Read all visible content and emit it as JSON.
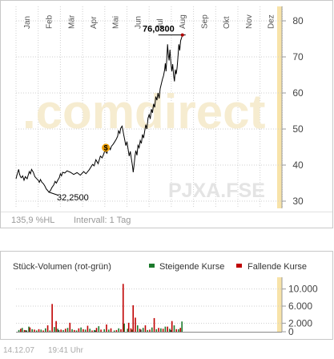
{
  "chart_data": [
    {
      "type": "line",
      "months": [
        "Jan",
        "Feb",
        "Mär",
        "Apr",
        "Mai",
        "Jun",
        "Jul",
        "Aug",
        "Sep",
        "Okt",
        "Nov",
        "Dez"
      ],
      "yticks": [
        30,
        40,
        50,
        60,
        70,
        80
      ],
      "ylim": [
        28,
        84
      ],
      "grid": true,
      "price_path": [
        [
          0,
          36.2
        ],
        [
          0.04,
          37.2
        ],
        [
          0.08,
          38.0
        ],
        [
          0.12,
          38.8
        ],
        [
          0.16,
          37.5
        ],
        [
          0.2,
          36.8
        ],
        [
          0.24,
          36.5
        ],
        [
          0.3,
          37.0
        ],
        [
          0.36,
          35.8
        ],
        [
          0.42,
          36.8
        ],
        [
          0.5,
          36.2
        ],
        [
          0.55,
          37.2
        ],
        [
          0.6,
          38.2
        ],
        [
          0.65,
          37.6
        ],
        [
          0.7,
          38.8
        ],
        [
          0.78,
          38.0
        ],
        [
          0.85,
          36.8
        ],
        [
          0.92,
          36.3
        ],
        [
          1.0,
          35.8
        ],
        [
          1.05,
          35.2
        ],
        [
          1.1,
          36.0
        ],
        [
          1.16,
          35.3
        ],
        [
          1.24,
          34.8
        ],
        [
          1.3,
          34.2
        ],
        [
          1.36,
          33.4
        ],
        [
          1.42,
          33.0
        ],
        [
          1.48,
          32.5
        ],
        [
          1.55,
          32.9
        ],
        [
          1.62,
          33.8
        ],
        [
          1.7,
          34.5
        ],
        [
          1.76,
          35.5
        ],
        [
          1.82,
          35.0
        ],
        [
          1.88,
          35.8
        ],
        [
          1.95,
          36.5
        ],
        [
          2.0,
          37.6
        ],
        [
          2.05,
          37.0
        ],
        [
          2.1,
          38.0
        ],
        [
          2.2,
          37.8
        ],
        [
          2.3,
          38.4
        ],
        [
          2.45,
          38.0
        ],
        [
          2.6,
          37.4
        ],
        [
          2.75,
          37.9
        ],
        [
          2.9,
          37.2
        ],
        [
          3.05,
          38.2
        ],
        [
          3.15,
          37.6
        ],
        [
          3.3,
          38.7
        ],
        [
          3.45,
          40.2
        ],
        [
          3.52,
          39.8
        ],
        [
          3.6,
          41.5
        ],
        [
          3.7,
          40.4
        ],
        [
          3.8,
          42.5
        ],
        [
          3.88,
          42.0
        ],
        [
          3.95,
          43.0
        ],
        [
          4.0,
          44.0
        ],
        [
          4.1,
          43.3
        ],
        [
          4.15,
          45.5
        ],
        [
          4.2,
          45.0
        ],
        [
          4.25,
          44.3
        ],
        [
          4.3,
          45.2
        ],
        [
          4.38,
          45.8
        ],
        [
          4.45,
          46.5
        ],
        [
          4.52,
          47.2
        ],
        [
          4.58,
          48.0
        ],
        [
          4.62,
          49.5
        ],
        [
          4.68,
          48.8
        ],
        [
          4.72,
          50.2
        ],
        [
          4.78,
          50.8
        ],
        [
          4.82,
          49.6
        ],
        [
          4.85,
          48.6
        ],
        [
          4.9,
          47.0
        ],
        [
          4.95,
          45.4
        ],
        [
          5.0,
          46.5
        ],
        [
          5.05,
          44.5
        ],
        [
          5.1,
          42.5
        ],
        [
          5.15,
          43.8
        ],
        [
          5.2,
          41.8
        ],
        [
          5.25,
          39.8
        ],
        [
          5.28,
          38.0
        ],
        [
          5.32,
          40.0
        ],
        [
          5.36,
          42.5
        ],
        [
          5.4,
          44.0
        ],
        [
          5.45,
          42.7
        ],
        [
          5.5,
          45.5
        ],
        [
          5.55,
          44.8
        ],
        [
          5.6,
          46.8
        ],
        [
          5.65,
          46.0
        ],
        [
          5.7,
          48.5
        ],
        [
          5.75,
          47.5
        ],
        [
          5.8,
          49.5
        ],
        [
          5.85,
          51.2
        ],
        [
          5.9,
          50.0
        ],
        [
          5.95,
          53.0
        ],
        [
          6.0,
          54.0
        ],
        [
          6.05,
          52.8
        ],
        [
          6.1,
          55.5
        ],
        [
          6.15,
          54.5
        ],
        [
          6.2,
          57.0
        ],
        [
          6.25,
          56.0
        ],
        [
          6.3,
          59.0
        ],
        [
          6.35,
          58.0
        ],
        [
          6.4,
          60.0
        ],
        [
          6.45,
          58.5
        ],
        [
          6.5,
          61.2
        ],
        [
          6.55,
          62.5
        ],
        [
          6.6,
          63.8
        ],
        [
          6.65,
          64.8
        ],
        [
          6.7,
          66.5
        ],
        [
          6.73,
          68.2
        ],
        [
          6.76,
          66.0
        ],
        [
          6.8,
          70.0
        ],
        [
          6.83,
          73.5
        ],
        [
          6.86,
          71.0
        ],
        [
          6.9,
          69.0
        ],
        [
          6.94,
          72.0
        ],
        [
          6.98,
          68.5
        ],
        [
          7.02,
          66.0
        ],
        [
          7.06,
          68.0
        ],
        [
          7.1,
          65.0
        ],
        [
          7.14,
          63.2
        ],
        [
          7.18,
          66.5
        ],
        [
          7.22,
          65.2
        ],
        [
          7.26,
          67.0
        ],
        [
          7.3,
          70.0
        ],
        [
          7.34,
          73.5
        ],
        [
          7.38,
          71.8
        ],
        [
          7.42,
          74.5
        ],
        [
          7.46,
          75.2
        ],
        [
          7.5,
          76.08
        ]
      ],
      "annotations": {
        "low_label": "32,2500",
        "high_label": "76,0800"
      },
      "dividend_marker": {
        "label": "$",
        "month_pos": 4.05,
        "value": 44.8,
        "color": "#f0a000"
      },
      "watermark": {
        "brand": ".comdirect",
        "ticker": "PJXA.FSE"
      },
      "footer": {
        "scale": "135,9 %HL",
        "interval": "Intervall: 1 Tag"
      },
      "colors": {
        "line": "#000000",
        "grid": "#cfcfcf",
        "axis": "#999999",
        "highlight": "#f8e3a8",
        "dot": "#b00000"
      }
    },
    {
      "type": "bar",
      "title": "Stück-Volumen (rot-grün)",
      "legend": [
        {
          "name": "Steigende Kurse",
          "color": "#1c7a2c"
        },
        {
          "name": "Fallende Kurse",
          "color": "#c00000"
        }
      ],
      "yticks": [
        "10.000",
        "6.000",
        "2.000",
        "0"
      ],
      "ytick_values": [
        10000,
        6000,
        2000,
        0
      ],
      "ylim": [
        0,
        12000
      ],
      "bars_rising": [
        [
          0.1,
          400
        ],
        [
          0.25,
          900
        ],
        [
          0.4,
          350
        ],
        [
          0.55,
          1200
        ],
        [
          0.7,
          600
        ],
        [
          0.9,
          300
        ],
        [
          1.1,
          500
        ],
        [
          1.3,
          800
        ],
        [
          1.5,
          300
        ],
        [
          1.7,
          1100
        ],
        [
          1.85,
          700
        ],
        [
          2.1,
          400
        ],
        [
          2.3,
          900
        ],
        [
          2.5,
          600
        ],
        [
          2.7,
          300
        ],
        [
          2.9,
          1000
        ],
        [
          3.1,
          500
        ],
        [
          3.3,
          700
        ],
        [
          3.5,
          400
        ],
        [
          3.7,
          1300
        ],
        [
          3.95,
          600
        ],
        [
          4.15,
          500
        ],
        [
          4.4,
          300
        ],
        [
          4.6,
          800
        ],
        [
          4.85,
          1900
        ],
        [
          5.0,
          700
        ],
        [
          5.2,
          500
        ],
        [
          5.45,
          1500
        ],
        [
          5.7,
          900
        ],
        [
          5.9,
          400
        ],
        [
          6.1,
          1000
        ],
        [
          6.3,
          600
        ],
        [
          6.5,
          800
        ],
        [
          6.7,
          1200
        ],
        [
          6.9,
          700
        ],
        [
          7.1,
          1500
        ],
        [
          7.3,
          600
        ],
        [
          7.45,
          2400
        ]
      ],
      "bars_falling": [
        [
          0.18,
          700
        ],
        [
          0.35,
          400
        ],
        [
          0.6,
          1000
        ],
        [
          0.8,
          500
        ],
        [
          1.0,
          600
        ],
        [
          1.2,
          300
        ],
        [
          1.4,
          1500
        ],
        [
          1.6,
          6500
        ],
        [
          1.78,
          2500
        ],
        [
          2.0,
          500
        ],
        [
          2.2,
          700
        ],
        [
          2.4,
          2100
        ],
        [
          2.6,
          400
        ],
        [
          2.8,
          800
        ],
        [
          3.0,
          600
        ],
        [
          3.2,
          1400
        ],
        [
          3.4,
          300
        ],
        [
          3.6,
          900
        ],
        [
          3.8,
          500
        ],
        [
          4.05,
          1700
        ],
        [
          4.25,
          800
        ],
        [
          4.5,
          400
        ],
        [
          4.7,
          600
        ],
        [
          4.8,
          11200
        ],
        [
          5.05,
          2100
        ],
        [
          5.15,
          800
        ],
        [
          5.25,
          6200
        ],
        [
          5.35,
          3300
        ],
        [
          5.55,
          700
        ],
        [
          5.8,
          1500
        ],
        [
          6.0,
          500
        ],
        [
          6.2,
          3200
        ],
        [
          6.4,
          900
        ],
        [
          6.6,
          700
        ],
        [
          6.8,
          1200
        ],
        [
          7.0,
          2500
        ],
        [
          7.2,
          600
        ],
        [
          7.38,
          900
        ]
      ],
      "bars_neutral": [
        [
          0.45,
          300
        ],
        [
          1.9,
          400
        ],
        [
          3.55,
          300
        ],
        [
          5.6,
          500
        ],
        [
          6.95,
          400
        ]
      ],
      "colors": {
        "neutral": "#333333",
        "highlight": "#f8e3a8"
      }
    }
  ],
  "footer_date": "14.12.07",
  "footer_time": "19:41 Uhr"
}
